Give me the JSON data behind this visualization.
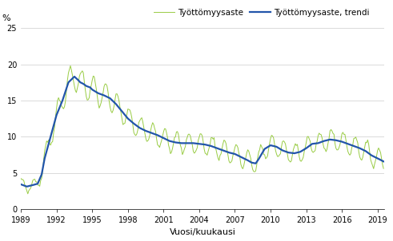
{
  "ylabel": "%",
  "xlabel": "Vuosi/kuukausi",
  "legend_label_rate": "Työttömyysaste",
  "legend_label_trend": "Työttömyysaste, trendi",
  "ylim": [
    0,
    25
  ],
  "yticks": [
    0,
    5,
    10,
    15,
    20,
    25
  ],
  "xticks": [
    1989,
    1992,
    1995,
    1998,
    2001,
    2004,
    2007,
    2010,
    2013,
    2016,
    2019
  ],
  "color_rate": "#99cc44",
  "color_trend": "#2255aa",
  "linewidth_rate": 0.7,
  "linewidth_trend": 1.6,
  "figsize": [
    4.91,
    3.02
  ],
  "dpi": 100,
  "grid_color": "#cccccc",
  "grid_lw": 0.5,
  "tick_fontsize": 7,
  "label_fontsize": 8,
  "legend_fontsize": 7.5
}
